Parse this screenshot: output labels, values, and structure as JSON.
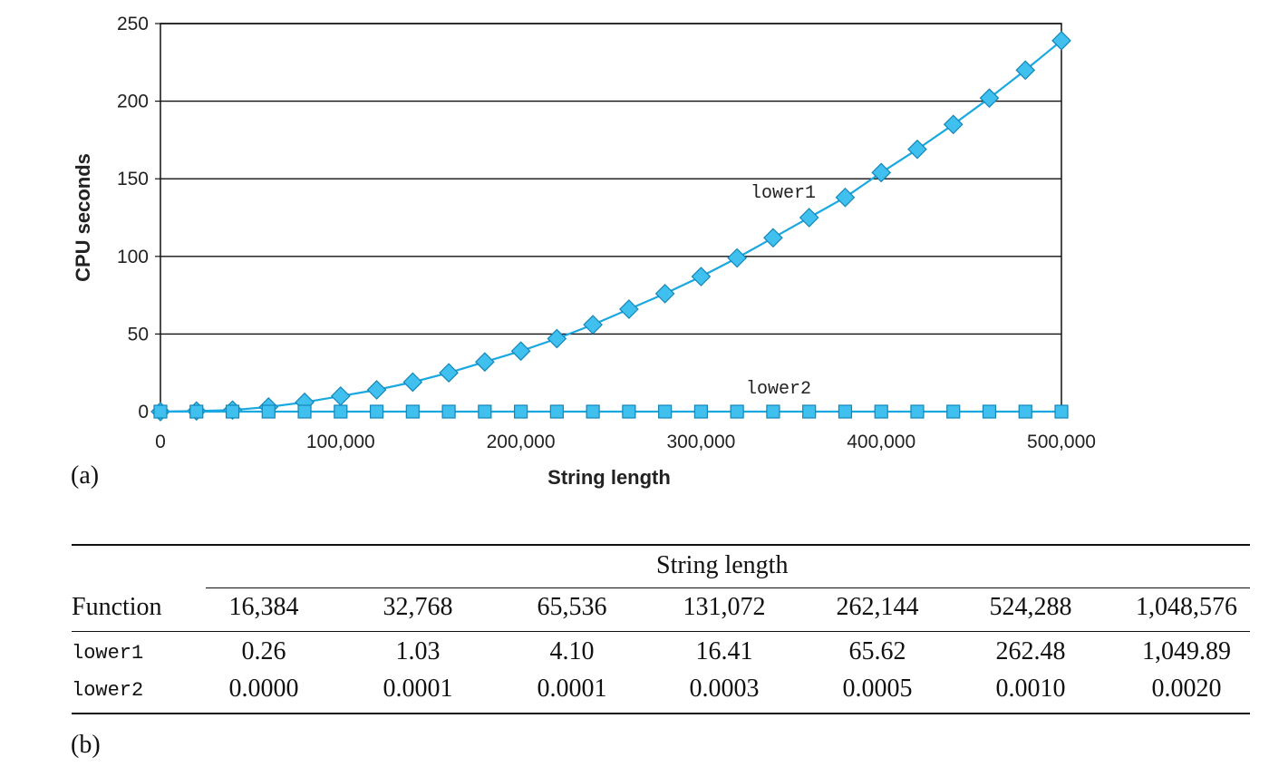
{
  "chart_data": {
    "type": "line",
    "xlabel": "String length",
    "ylabel": "CPU seconds",
    "xlim": [
      0,
      500000
    ],
    "ylim": [
      0,
      250
    ],
    "x_ticks": [
      "0",
      "100,000",
      "200,000",
      "300,000",
      "400,000",
      "500,000"
    ],
    "y_ticks": [
      "0",
      "50",
      "100",
      "150",
      "200",
      "250"
    ],
    "grid": "horizontal",
    "colors": {
      "line": "#1aa8e0",
      "marker_fill": "#3fc0ef",
      "marker_stroke": "#1486b8",
      "frame": "#111111"
    },
    "x": [
      0,
      20000,
      40000,
      60000,
      80000,
      100000,
      120000,
      140000,
      160000,
      180000,
      200000,
      220000,
      240000,
      260000,
      280000,
      300000,
      320000,
      340000,
      360000,
      380000,
      400000,
      420000,
      440000,
      460000,
      480000,
      500000
    ],
    "series": [
      {
        "name": "lower1",
        "marker": "diamond",
        "values": [
          0,
          0.4,
          1,
          3,
          6,
          10,
          14,
          19,
          25,
          32,
          39,
          47,
          56,
          66,
          76,
          87,
          99,
          112,
          125,
          138,
          154,
          169,
          185,
          202,
          220,
          239
        ]
      },
      {
        "name": "lower2",
        "marker": "square",
        "values": [
          0,
          0,
          0,
          0,
          0,
          0,
          0,
          0,
          0,
          0,
          0,
          0,
          0,
          0,
          0,
          0,
          0,
          0,
          0,
          0,
          0,
          0,
          0,
          0,
          0,
          0
        ]
      }
    ]
  },
  "panel_a": "(a)",
  "panel_b": "(b)",
  "table": {
    "group_header": "String length",
    "function_header": "Function",
    "columns": [
      "16,384",
      "32,768",
      "65,536",
      "131,072",
      "262,144",
      "524,288",
      "1,048,576"
    ],
    "rows": [
      {
        "name": "lower1",
        "values": [
          "0.26",
          "1.03",
          "4.10",
          "16.41",
          "65.62",
          "262.48",
          "1,049.89"
        ]
      },
      {
        "name": "lower2",
        "values": [
          "0.0000",
          "0.0001",
          "0.0001",
          "0.0003",
          "0.0005",
          "0.0010",
          "0.0020"
        ]
      }
    ]
  }
}
